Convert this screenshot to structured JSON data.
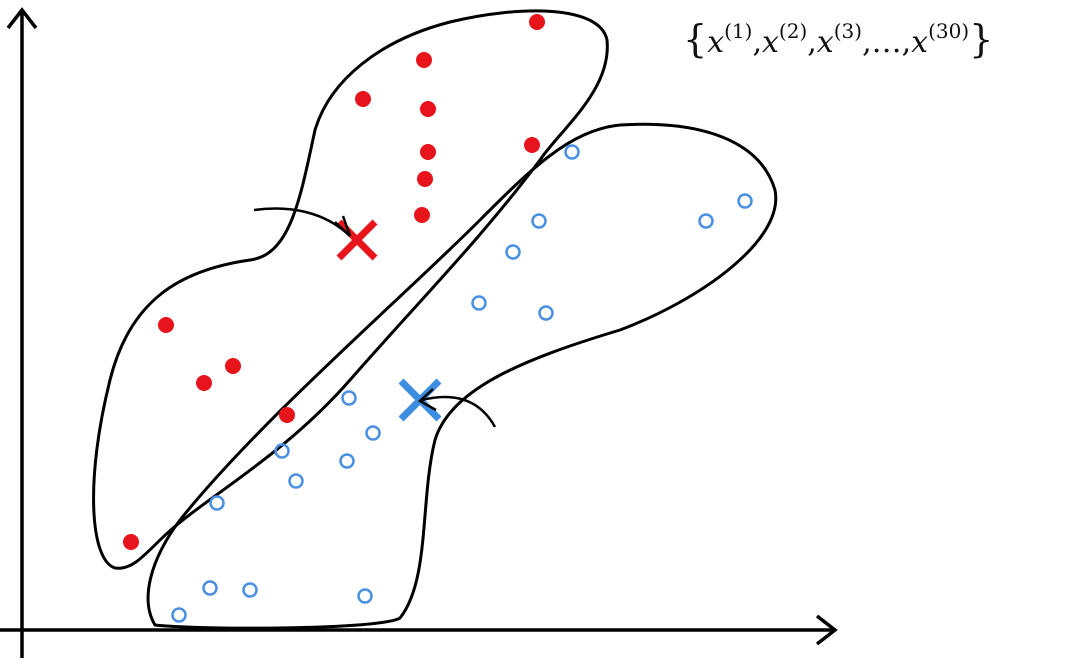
{
  "set": {
    "open": "{",
    "items": [
      {
        "base": "x",
        "index": "(1)"
      },
      {
        "base": "x",
        "index": "(2)"
      },
      {
        "base": "x",
        "index": "(3)"
      },
      {
        "base": "x",
        "index": "(30)"
      }
    ],
    "separator": ",",
    "ellipsis": "…",
    "close": "}"
  }
}
